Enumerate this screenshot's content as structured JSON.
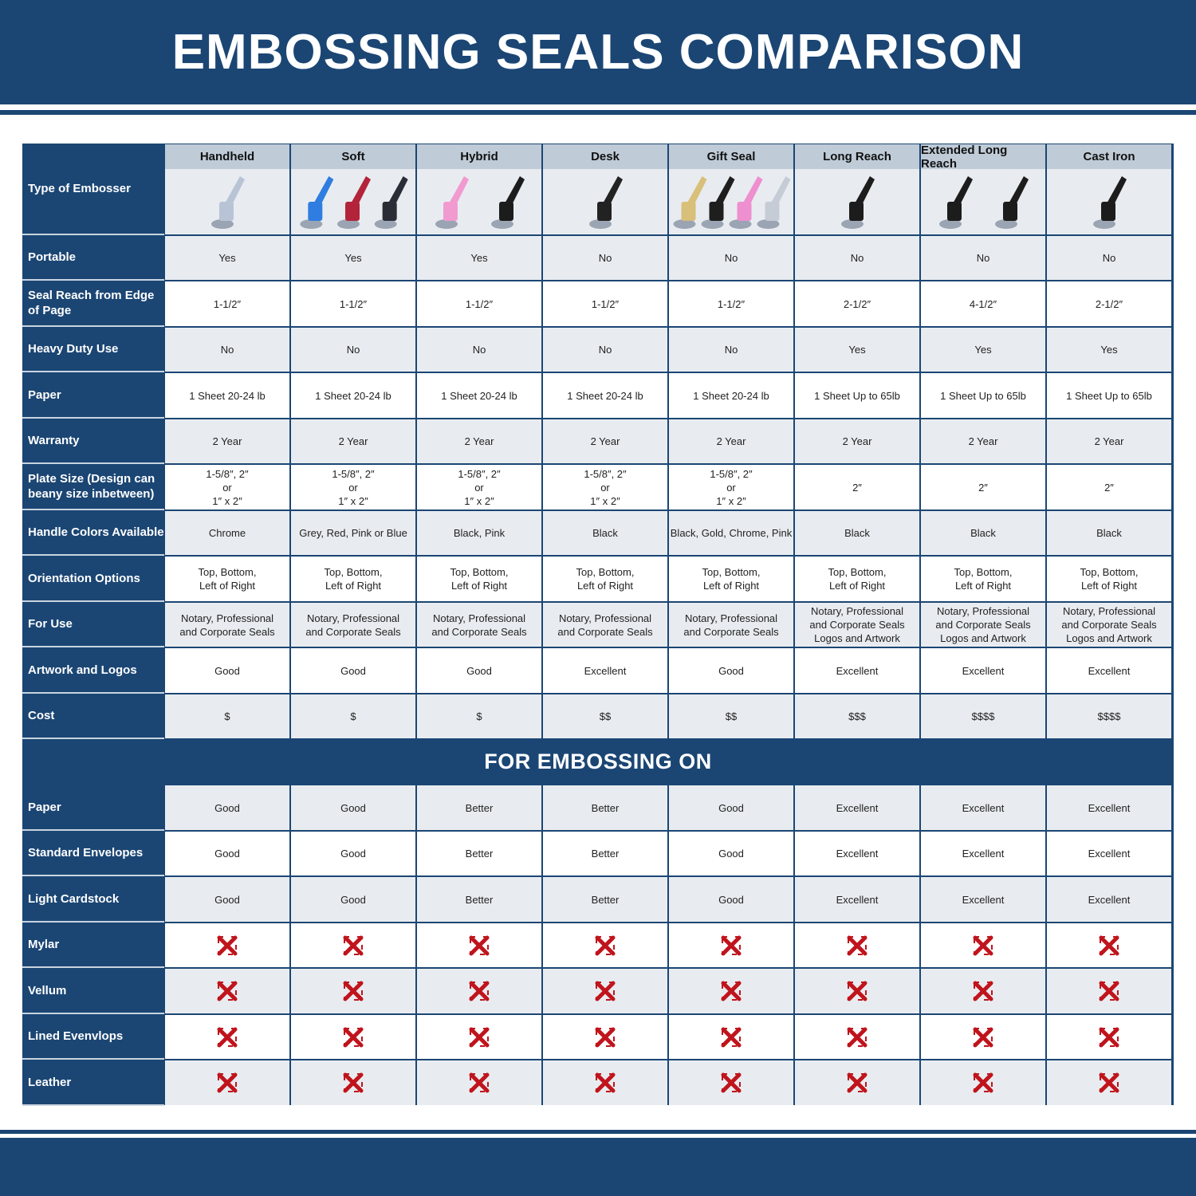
{
  "title": "EMBOSSING SEALS COMPARISON",
  "colors": {
    "navy": "#1b4674",
    "header_gray": "#bfcbd7",
    "row_gray": "#e8ecf0",
    "x_red": "#c0141c"
  },
  "corner_label": "Type of Embosser",
  "columns": [
    {
      "name": "Handheld",
      "product_colors": [
        "#b9c3d6"
      ]
    },
    {
      "name": "Soft",
      "product_colors": [
        "#2f7de0",
        "#b3243a",
        "#2a2d36"
      ]
    },
    {
      "name": "Hybrid",
      "product_colors": [
        "#f19ad0",
        "#1c1c1c"
      ]
    },
    {
      "name": "Desk",
      "product_colors": [
        "#222222"
      ]
    },
    {
      "name": "Gift Seal",
      "product_colors": [
        "#d8c07a",
        "#1e1e1e",
        "#ee8fcf",
        "#c5ccd6"
      ]
    },
    {
      "name": "Long Reach",
      "product_colors": [
        "#1c1c1c"
      ]
    },
    {
      "name": "Extended Long Reach",
      "product_colors": [
        "#1c1c1c",
        "#1c1c1c"
      ]
    },
    {
      "name": "Cast Iron",
      "product_colors": [
        "#1c1c1c"
      ]
    }
  ],
  "rows": [
    {
      "label": "Portable",
      "values": [
        "Yes",
        "Yes",
        "Yes",
        "No",
        "No",
        "No",
        "No",
        "No"
      ]
    },
    {
      "label": "Seal Reach from Edge of Page",
      "values": [
        "1-1/2″",
        "1-1/2″",
        "1-1/2″",
        "1-1/2″",
        "1-1/2″",
        "2-1/2″",
        "4-1/2″",
        "2-1/2″"
      ]
    },
    {
      "label": "Heavy Duty Use",
      "values": [
        "No",
        "No",
        "No",
        "No",
        "No",
        "Yes",
        "Yes",
        "Yes"
      ]
    },
    {
      "label": "Paper",
      "values": [
        "1 Sheet 20-24 lb",
        "1 Sheet 20-24 lb",
        "1 Sheet 20-24 lb",
        "1 Sheet 20-24 lb",
        "1 Sheet 20-24 lb",
        "1 Sheet Up to 65lb",
        "1 Sheet Up to 65lb",
        "1 Sheet Up to 65lb"
      ]
    },
    {
      "label": "Warranty",
      "values": [
        "2 Year",
        "2 Year",
        "2 Year",
        "2 Year",
        "2 Year",
        "2 Year",
        "2 Year",
        "2 Year"
      ]
    },
    {
      "label": "Plate Size (Design can beany size inbetween)",
      "values": [
        "1-5/8″, 2″\nor\n1″ x 2″",
        "1-5/8″, 2″\nor\n1″ x 2″",
        "1-5/8″, 2″\nor\n1″ x 2″",
        "1-5/8″, 2″\nor\n1″ x 2″",
        "1-5/8″, 2″\nor\n1″ x 2″",
        "2″",
        "2″",
        "2″"
      ]
    },
    {
      "label": "Handle Colors Available",
      "values": [
        "Chrome",
        "Grey, Red, Pink or Blue",
        "Black, Pink",
        "Black",
        "Black, Gold, Chrome, Pink",
        "Black",
        "Black",
        "Black"
      ]
    },
    {
      "label": "Orientation Options",
      "values": [
        "Top, Bottom,\nLeft of Right",
        "Top, Bottom,\nLeft of Right",
        "Top, Bottom,\nLeft of Right",
        "Top, Bottom,\nLeft of Right",
        "Top, Bottom,\nLeft of Right",
        "Top, Bottom,\nLeft of Right",
        "Top, Bottom,\nLeft of Right",
        "Top, Bottom,\nLeft of Right"
      ]
    },
    {
      "label": "For Use",
      "values": [
        "Notary, Professional\nand Corporate Seals",
        "Notary, Professional\nand Corporate Seals",
        "Notary, Professional\nand Corporate Seals",
        "Notary, Professional\nand Corporate Seals",
        "Notary, Professional\nand Corporate Seals",
        "Notary, Professional\nand Corporate Seals\nLogos and Artwork",
        "Notary, Professional\nand Corporate Seals\nLogos and Artwork",
        "Notary, Professional\nand Corporate Seals\nLogos and Artwork"
      ]
    },
    {
      "label": "Artwork and Logos",
      "values": [
        "Good",
        "Good",
        "Good",
        "Excellent",
        "Good",
        "Excellent",
        "Excellent",
        "Excellent"
      ]
    },
    {
      "label": "Cost",
      "values": [
        "$",
        "$",
        "$",
        "$$",
        "$$",
        "$$$",
        "$$$$",
        "$$$$"
      ]
    }
  ],
  "section_title": "FOR EMBOSSING ON",
  "embossing_rows": [
    {
      "label": "Paper",
      "values": [
        "Good",
        "Good",
        "Better",
        "Better",
        "Good",
        "Excellent",
        "Excellent",
        "Excellent"
      ]
    },
    {
      "label": "Standard Envelopes",
      "values": [
        "Good",
        "Good",
        "Better",
        "Better",
        "Good",
        "Excellent",
        "Excellent",
        "Excellent"
      ]
    },
    {
      "label": "Light Cardstock",
      "values": [
        "Good",
        "Good",
        "Better",
        "Better",
        "Good",
        "Excellent",
        "Excellent",
        "Excellent"
      ]
    },
    {
      "label": "Mylar",
      "values": [
        "x-icon",
        "x-icon",
        "x-icon",
        "x-icon",
        "x-icon",
        "x-icon",
        "x-icon",
        "x-icon"
      ]
    },
    {
      "label": "Vellum",
      "values": [
        "x-icon",
        "x-icon",
        "x-icon",
        "x-icon",
        "x-icon",
        "x-icon",
        "x-icon",
        "x-icon"
      ]
    },
    {
      "label": "Lined Evenvlops",
      "values": [
        "x-icon",
        "x-icon",
        "x-icon",
        "x-icon",
        "x-icon",
        "x-icon",
        "x-icon",
        "x-icon"
      ]
    },
    {
      "label": "Leather",
      "values": [
        "x-icon",
        "x-icon",
        "x-icon",
        "x-icon",
        "x-icon",
        "x-icon",
        "x-icon",
        "x-icon"
      ]
    }
  ]
}
